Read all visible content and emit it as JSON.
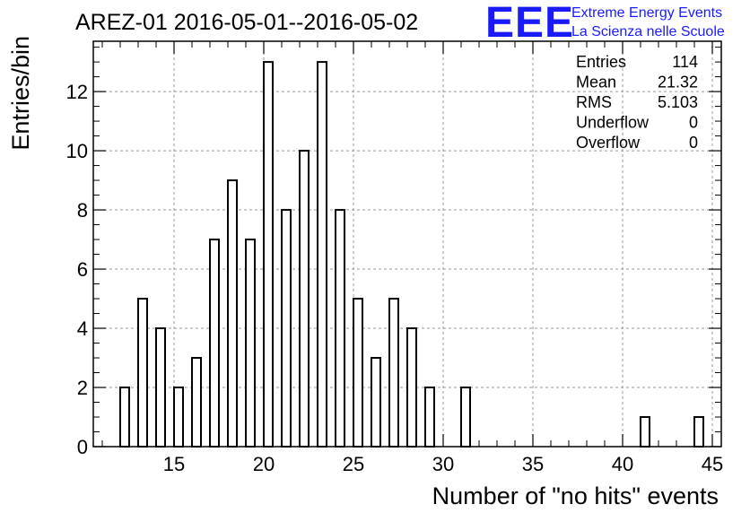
{
  "title": "AREZ-01 2016-05-01--2016-05-02",
  "logo": {
    "mark": "EEE",
    "line1": "Extreme Energy Events",
    "line2": "La Scienza nelle Scuole",
    "color": "#1a1aff"
  },
  "stats": [
    {
      "label": "Entries",
      "value": "114"
    },
    {
      "label": "Mean",
      "value": "21.32"
    },
    {
      "label": "RMS",
      "value": "5.103"
    },
    {
      "label": "Underflow",
      "value": "0"
    },
    {
      "label": "Overflow",
      "value": "0"
    }
  ],
  "chart_data": {
    "type": "bar",
    "title": "AREZ-01 2016-05-01--2016-05-02",
    "xlabel": "Number of \"no hits\" events",
    "ylabel": "Entries/bin",
    "xlim": [
      10.5,
      45.5
    ],
    "ylim": [
      0,
      13.7
    ],
    "bin_width": 0.5,
    "grid": true,
    "legend": "top-right stats box",
    "x_ticks": [
      15,
      20,
      25,
      30,
      35,
      40,
      45
    ],
    "y_ticks": [
      0,
      2,
      4,
      6,
      8,
      10,
      12
    ],
    "bins": [
      {
        "x": 12,
        "value": 2
      },
      {
        "x": 13,
        "value": 5
      },
      {
        "x": 14,
        "value": 4
      },
      {
        "x": 15,
        "value": 2
      },
      {
        "x": 16,
        "value": 3
      },
      {
        "x": 17,
        "value": 7
      },
      {
        "x": 18,
        "value": 9
      },
      {
        "x": 19,
        "value": 7
      },
      {
        "x": 20,
        "value": 13
      },
      {
        "x": 21,
        "value": 8
      },
      {
        "x": 22,
        "value": 10
      },
      {
        "x": 23,
        "value": 13
      },
      {
        "x": 24,
        "value": 8
      },
      {
        "x": 25,
        "value": 5
      },
      {
        "x": 26,
        "value": 3
      },
      {
        "x": 27,
        "value": 5
      },
      {
        "x": 28,
        "value": 4
      },
      {
        "x": 29,
        "value": 2
      },
      {
        "x": 31,
        "value": 2
      },
      {
        "x": 41,
        "value": 1
      },
      {
        "x": 44,
        "value": 1
      }
    ]
  }
}
